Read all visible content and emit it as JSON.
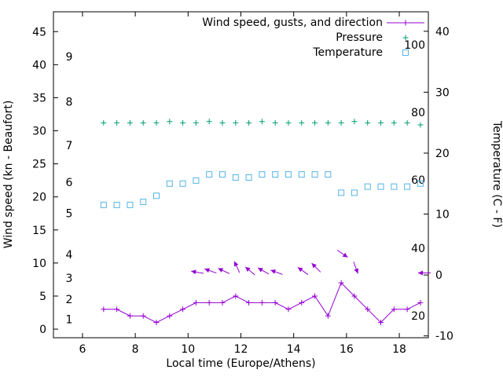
{
  "chart_data": {
    "type": "line",
    "title": "",
    "xlabel": "Local time (Europe/Athens)",
    "ylabel_left": "Wind speed (kn - Beaufort)",
    "ylabel_right": "Temperature (C - F)",
    "xlim": [
      4.9,
      19.1
    ],
    "x_ticks": [
      6,
      8,
      10,
      12,
      14,
      16,
      18
    ],
    "ylim_left": [
      -1.3,
      48
    ],
    "y_ticks_left": [
      0,
      5,
      10,
      15,
      20,
      25,
      30,
      35,
      40,
      45
    ],
    "ylim_right": [
      -10.3,
      43.2
    ],
    "y_ticks_right": [
      -10,
      0,
      10,
      20,
      30,
      40
    ],
    "grid": false,
    "legend_position": "top-right-inside",
    "beaufort_labels": [
      {
        "text": "1",
        "kn": 1.5
      },
      {
        "text": "2",
        "kn": 4.5
      },
      {
        "text": "3",
        "kn": 7.7
      },
      {
        "text": "4",
        "kn": 11.3
      },
      {
        "text": "5",
        "kn": 17.5
      },
      {
        "text": "6",
        "kn": 22.2
      },
      {
        "text": "7",
        "kn": 27.8
      },
      {
        "text": "8",
        "kn": 34.4
      },
      {
        "text": "9",
        "kn": 41.2
      }
    ],
    "fahrenheit_labels": [
      {
        "text": "20",
        "c": -6.7
      },
      {
        "text": "40",
        "c": 4.4
      },
      {
        "text": "60",
        "c": 15.6
      },
      {
        "text": "80",
        "c": 26.7
      },
      {
        "text": "100",
        "c": 37.8
      }
    ],
    "x": [
      6.8,
      7.3,
      7.8,
      8.3,
      8.8,
      9.3,
      9.8,
      10.3,
      10.8,
      11.3,
      11.8,
      12.3,
      12.8,
      13.3,
      13.8,
      14.3,
      14.8,
      15.3,
      15.8,
      16.3,
      16.8,
      17.3,
      17.8,
      18.3,
      18.8
    ],
    "series": [
      {
        "id": "wind",
        "name": "Wind speed, gusts, and direction",
        "color": "#9400d3",
        "marker": "plus",
        "legend_line": true,
        "axis": "left",
        "values": [
          3,
          3,
          2,
          2,
          1,
          2,
          3,
          4,
          4,
          4,
          5,
          4,
          4,
          4,
          3,
          4,
          5,
          2,
          7,
          5,
          3,
          1,
          3,
          3,
          4
        ]
      },
      {
        "id": "pressure",
        "name": "Pressure",
        "color": "#009e73",
        "marker": "plus",
        "legend_line": false,
        "axis": "left",
        "values": [
          31.2,
          31.2,
          31.2,
          31.2,
          31.2,
          31.4,
          31.2,
          31.2,
          31.4,
          31.2,
          31.2,
          31.2,
          31.4,
          31.2,
          31.2,
          31.2,
          31.2,
          31.2,
          31.2,
          31.4,
          31.2,
          31.2,
          31.2,
          31.2,
          30.9
        ]
      },
      {
        "id": "temperature",
        "name": "Temperature",
        "color": "#56b4e9",
        "marker": "square",
        "legend_line": false,
        "axis": "right",
        "values": [
          11.5,
          11.5,
          11.5,
          12,
          13,
          15,
          15,
          15.5,
          16.5,
          16.5,
          16,
          16,
          16.5,
          16.5,
          16.5,
          16.5,
          16.5,
          16.5,
          13.5,
          13.5,
          14.5,
          14.5,
          14.5,
          14.5,
          15
        ]
      }
    ],
    "wind_arrows": [
      {
        "x": 10.35,
        "kn": 8.6,
        "angle_deg": 170
      },
      {
        "x": 10.85,
        "kn": 8.8,
        "angle_deg": 160
      },
      {
        "x": 11.35,
        "kn": 8.8,
        "angle_deg": 155
      },
      {
        "x": 11.85,
        "kn": 9.4,
        "angle_deg": 115
      },
      {
        "x": 12.35,
        "kn": 8.8,
        "angle_deg": 140
      },
      {
        "x": 12.85,
        "kn": 8.8,
        "angle_deg": 150
      },
      {
        "x": 13.35,
        "kn": 8.6,
        "angle_deg": 160
      },
      {
        "x": 14.35,
        "kn": 8.8,
        "angle_deg": 145
      },
      {
        "x": 14.85,
        "kn": 9.3,
        "angle_deg": 135
      },
      {
        "x": 15.85,
        "kn": 11.4,
        "angle_deg": 325
      },
      {
        "x": 16.35,
        "kn": 9.3,
        "angle_deg": 290
      },
      {
        "x": 18.95,
        "kn": 8.5,
        "angle_deg": 180
      }
    ]
  }
}
